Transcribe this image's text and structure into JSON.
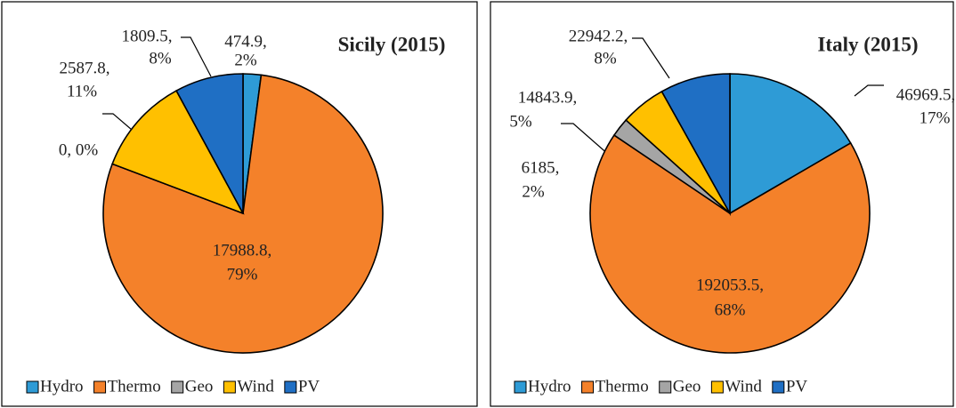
{
  "chart_data": [
    {
      "type": "pie",
      "title": "Sicily (2015)",
      "categories": [
        "Hydro",
        "Thermo",
        "Geo",
        "Wind",
        "PV"
      ],
      "values": [
        474.9,
        17988.8,
        0,
        2587.8,
        1809.5
      ],
      "value_labels": [
        [
          "474.9,",
          "2%"
        ],
        [
          "17988.8,",
          "79%"
        ],
        [
          "0, 0%"
        ],
        [
          "2587.8,",
          "11%"
        ],
        [
          "1809.5,",
          "8%"
        ]
      ],
      "colors": [
        "#2e9bd6",
        "#f4812a",
        "#a5a5a5",
        "#ffc000",
        "#1f6fc4"
      ],
      "legend": "bottom"
    },
    {
      "type": "pie",
      "title": "Italy (2015)",
      "categories": [
        "Hydro",
        "Thermo",
        "Geo",
        "Wind",
        "PV"
      ],
      "values": [
        46969.5,
        192053.5,
        6185,
        14843.9,
        22942.2
      ],
      "value_labels": [
        [
          "46969.5,",
          "17%"
        ],
        [
          "192053.5,",
          "68%"
        ],
        [
          "6185,",
          "2%"
        ],
        [
          "14843.9,",
          "5%"
        ],
        [
          "22942.2,",
          "8%"
        ]
      ],
      "colors": [
        "#2e9bd6",
        "#f4812a",
        "#a5a5a5",
        "#ffc000",
        "#1f6fc4"
      ],
      "legend": "bottom"
    }
  ]
}
